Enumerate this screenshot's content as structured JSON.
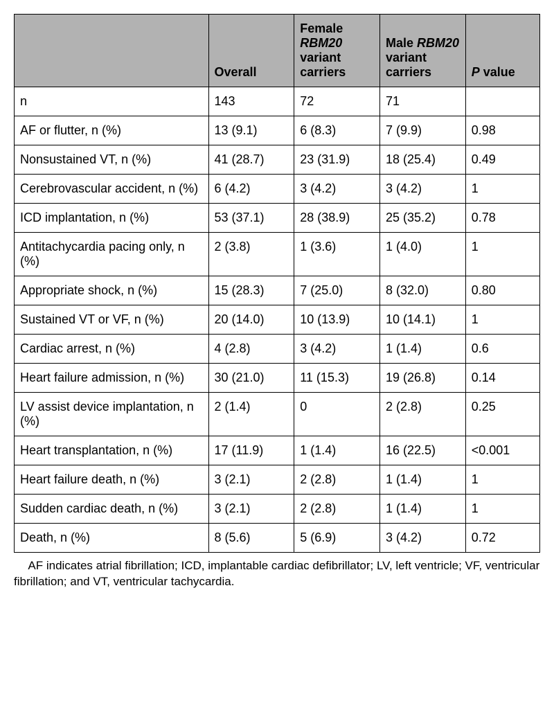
{
  "table": {
    "headers": {
      "blank": "",
      "overall": "Overall",
      "female_pre": "Female ",
      "female_it": "RBM20",
      "female_post": " variant carriers",
      "male_pre": "Male ",
      "male_it": "RBM20",
      "male_post": " variant carriers",
      "p_it": "P",
      "p_post": " value"
    },
    "rows": [
      {
        "label": "n",
        "overall": "143",
        "female": "72",
        "male": "71",
        "p": ""
      },
      {
        "label": "AF or flutter, n (%)",
        "overall": "13 (9.1)",
        "female": "6 (8.3)",
        "male": "7 (9.9)",
        "p": "0.98"
      },
      {
        "label": "Nonsustained VT, n (%)",
        "overall": "41 (28.7)",
        "female": "23 (31.9)",
        "male": "18 (25.4)",
        "p": "0.49"
      },
      {
        "label": "Cerebrovascular accident, n (%)",
        "overall": "6 (4.2)",
        "female": "3 (4.2)",
        "male": "3 (4.2)",
        "p": "1"
      },
      {
        "label": "ICD implantation, n (%)",
        "overall": "53 (37.1)",
        "female": "28 (38.9)",
        "male": "25 (35.2)",
        "p": "0.78"
      },
      {
        "label": "Antitachycardia pacing only, n (%)",
        "overall": "2 (3.8)",
        "female": "1 (3.6)",
        "male": "1 (4.0)",
        "p": "1"
      },
      {
        "label": "Appropriate shock, n (%)",
        "overall": "15 (28.3)",
        "female": "7 (25.0)",
        "male": "8 (32.0)",
        "p": "0.80"
      },
      {
        "label": "Sustained VT or VF, n (%)",
        "overall": "20 (14.0)",
        "female": "10 (13.9)",
        "male": "10 (14.1)",
        "p": "1"
      },
      {
        "label": "Cardiac arrest, n (%)",
        "overall": "4 (2.8)",
        "female": "3 (4.2)",
        "male": "1 (1.4)",
        "p": "0.6"
      },
      {
        "label": "Heart failure admission, n (%)",
        "overall": "30 (21.0)",
        "female": "11 (15.3)",
        "male": "19 (26.8)",
        "p": "0.14"
      },
      {
        "label": "LV assist device implantation, n (%)",
        "overall": "2 (1.4)",
        "female": "0",
        "male": "2 (2.8)",
        "p": "0.25"
      },
      {
        "label": "Heart transplantation, n (%)",
        "overall": "17 (11.9)",
        "female": "1 (1.4)",
        "male": "16 (22.5)",
        "p": "<0.001"
      },
      {
        "label": "Heart failure death, n (%)",
        "overall": "3 (2.1)",
        "female": "2 (2.8)",
        "male": "1 (1.4)",
        "p": "1"
      },
      {
        "label": "Sudden cardiac death, n (%)",
        "overall": "3 (2.1)",
        "female": "2 (2.8)",
        "male": "1 (1.4)",
        "p": "1"
      },
      {
        "label": "Death, n (%)",
        "overall": "8 (5.6)",
        "female": "5 (6.9)",
        "male": "3 (4.2)",
        "p": "0.72"
      }
    ]
  },
  "footnote": "AF indicates atrial fibrillation; ICD, implantable cardiac defibrillator; LV, left ventricle; VF, ventricular fibrillation; and VT, ventricular tachycardia."
}
